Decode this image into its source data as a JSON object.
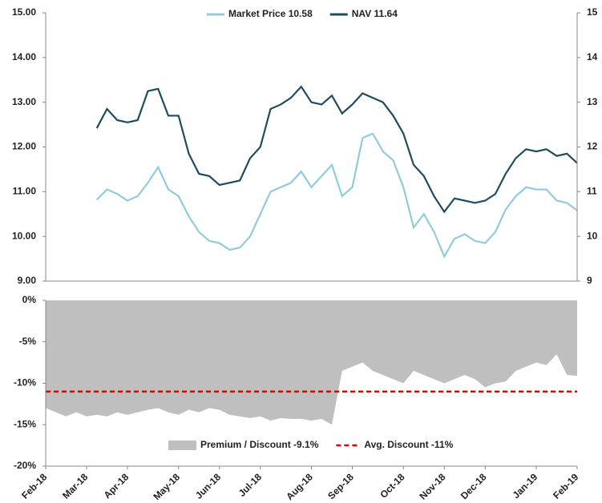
{
  "chart_data": [
    {
      "type": "line",
      "series": [
        {
          "name": "Market Price 10.58",
          "color": "#92cbd9",
          "values": [
            null,
            null,
            null,
            null,
            null,
            10.82,
            11.05,
            10.95,
            10.8,
            10.9,
            11.2,
            11.55,
            11.05,
            10.9,
            10.45,
            10.1,
            9.9,
            9.85,
            9.7,
            9.75,
            10.0,
            10.5,
            11.0,
            11.1,
            11.2,
            11.45,
            11.1,
            11.35,
            11.6,
            10.9,
            11.1,
            12.2,
            12.3,
            11.9,
            11.7,
            11.1,
            10.2,
            10.5,
            10.1,
            9.55,
            9.95,
            10.05,
            9.9,
            9.85,
            10.1,
            10.6,
            10.9,
            11.1,
            11.05,
            11.05,
            10.8,
            10.75,
            10.58
          ]
        },
        {
          "name": "NAV 11.64",
          "color": "#1f4d5c",
          "values": [
            null,
            null,
            null,
            null,
            null,
            12.42,
            12.85,
            12.6,
            12.55,
            12.6,
            13.25,
            13.3,
            12.7,
            12.7,
            11.85,
            11.4,
            11.35,
            11.15,
            11.2,
            11.25,
            11.75,
            12.0,
            12.85,
            12.95,
            13.1,
            13.35,
            13.0,
            12.95,
            13.15,
            12.75,
            12.95,
            13.2,
            13.1,
            13.0,
            12.7,
            12.3,
            11.6,
            11.35,
            10.9,
            10.55,
            10.85,
            10.8,
            10.75,
            10.8,
            10.95,
            11.4,
            11.75,
            11.95,
            11.9,
            11.95,
            11.8,
            11.85,
            11.64
          ]
        }
      ],
      "ylim": [
        9,
        15
      ],
      "yticks": [
        {
          "value": 9,
          "label": "9.00"
        },
        {
          "value": 10,
          "label": "10.00"
        },
        {
          "value": 11,
          "label": "11.00"
        },
        {
          "value": 12,
          "label": "12.00"
        },
        {
          "value": 13,
          "label": "13.00"
        },
        {
          "value": 14,
          "label": "14.00"
        },
        {
          "value": 15,
          "label": "15.00"
        }
      ],
      "y2lim": [
        9,
        15
      ],
      "y2ticks": [
        9,
        10,
        11,
        12,
        13,
        14,
        15
      ]
    },
    {
      "type": "area",
      "categories": [
        "Feb-18",
        null,
        null,
        null,
        "Mar-18",
        null,
        null,
        null,
        "Apr-18",
        null,
        null,
        null,
        null,
        "May-18",
        null,
        null,
        null,
        "Jun-18",
        null,
        null,
        null,
        "Jul-18",
        null,
        null,
        null,
        null,
        "Aug-18",
        null,
        null,
        null,
        "Sep-18",
        null,
        null,
        null,
        null,
        "Oct-18",
        null,
        null,
        null,
        "Nov-18",
        null,
        null,
        null,
        "Dec-18",
        null,
        null,
        null,
        null,
        "Jan-19",
        null,
        null,
        null,
        "Feb-19"
      ],
      "series": [
        {
          "name": "Premium / Discount -9.1%",
          "color": "#bfbfbf",
          "values": [
            -13,
            -13.5,
            -14,
            -13.5,
            -14,
            -13.8,
            -14,
            -13.5,
            -13.8,
            -13.5,
            -13.2,
            -13,
            -13.5,
            -13.8,
            -13.2,
            -13.5,
            -13,
            -13.2,
            -13.8,
            -14,
            -14.2,
            -14,
            -14.5,
            -14.2,
            -14.3,
            -14.3,
            -14.5,
            -14.3,
            -15,
            -8.5,
            -8,
            -7.5,
            -8.5,
            -9,
            -9.5,
            -10,
            -8.5,
            -9,
            -9.5,
            -10,
            -9.5,
            -9,
            -9.5,
            -10.5,
            -10,
            -9.8,
            -8.5,
            -8,
            -7.5,
            -7.8,
            -6.5,
            -9,
            -9.1
          ]
        }
      ],
      "reference_line": {
        "name": "Avg. Discount -11%",
        "value": -11,
        "color": "#e00000"
      },
      "ylim": [
        -20,
        0
      ],
      "yticks": [
        {
          "value": -20,
          "label": "-20%"
        },
        {
          "value": -15,
          "label": "-15%"
        },
        {
          "value": -10,
          "label": "-10%"
        },
        {
          "value": -5,
          "label": "-5%"
        },
        {
          "value": 0,
          "label": "0%"
        }
      ]
    }
  ]
}
